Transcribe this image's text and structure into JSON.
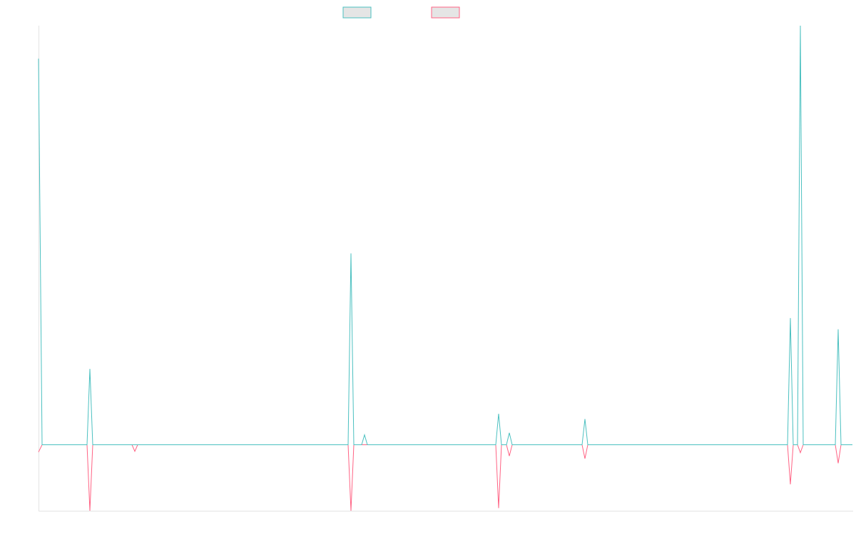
{
  "chart_data": {
    "type": "line",
    "title": "",
    "xlabel": "",
    "ylabel": "",
    "grid": false,
    "legend_position": "top-center",
    "ylim": [
      -100,
      635
    ],
    "xlim": [
      0,
      1141
    ],
    "x": [
      0,
      5,
      68,
      72,
      76,
      131,
      135,
      139,
      434,
      438,
      442,
      453,
      457,
      461,
      641,
      645,
      649,
      656,
      660,
      664,
      762,
      766,
      770,
      1050,
      1054,
      1058,
      1064,
      1068,
      1072,
      1117,
      1121,
      1125,
      1141
    ],
    "series": [
      {
        "color": "#4bc0c0",
        "fill": "#e5e5e5",
        "values": [
          585,
          0,
          0,
          115,
          0,
          0,
          0,
          0,
          0,
          290,
          0,
          0,
          15,
          0,
          0,
          47,
          0,
          0,
          18,
          0,
          0,
          39,
          0,
          0,
          192,
          0,
          0,
          640,
          0,
          0,
          175,
          0,
          0
        ]
      },
      {
        "color": "#ff6384",
        "fill": "#e5e5e5",
        "values": [
          -11,
          0,
          0,
          -100,
          0,
          0,
          -10,
          0,
          0,
          -120,
          0,
          0,
          0,
          0,
          0,
          -96,
          0,
          0,
          -17,
          0,
          0,
          -21,
          0,
          0,
          -60,
          0,
          0,
          -12,
          0,
          0,
          -28,
          0,
          0
        ]
      }
    ]
  }
}
